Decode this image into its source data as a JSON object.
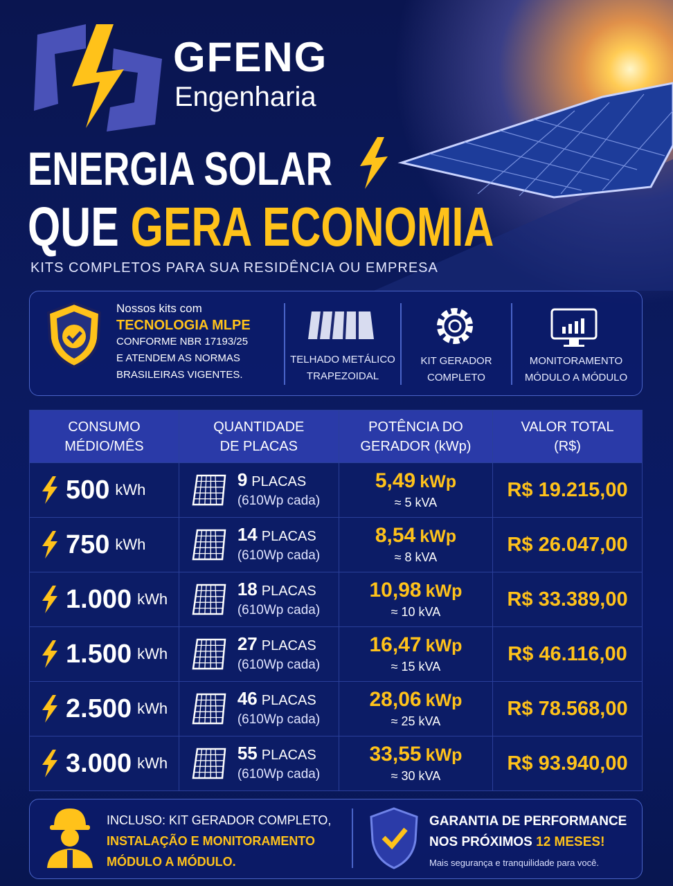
{
  "brand": {
    "name": "GFENG",
    "subtitle": "Engenharia"
  },
  "headline": {
    "line1": "ENERGIA SOLAR",
    "line2_white": "QUE",
    "line2_yellow": "GERA ECONOMIA",
    "tagline": "KITS COMPLETOS PARA SUA RESIDÊNCIA OU EMPRESA"
  },
  "features": {
    "mlpe": {
      "intro": "Nossos kits com",
      "highlight": "TECNOLOGIA MLPE",
      "lines": [
        "CONFORME NBR 17193/25",
        "E ATENDEM AS NORMAS",
        "BRASILEIRAS VIGENTES."
      ]
    },
    "items": [
      {
        "lines": [
          "TELHADO METÁLICO",
          "TRAPEZOIDAL"
        ]
      },
      {
        "lines": [
          "KIT GERADOR",
          "COMPLETO"
        ]
      },
      {
        "lines": [
          "MONITORAMENTO",
          "MÓDULO A MÓDULO"
        ]
      }
    ]
  },
  "table": {
    "headers": [
      [
        "CONSUMO",
        "MÉDIO/MÊS"
      ],
      [
        "QUANTIDADE",
        "DE PLACAS"
      ],
      [
        "POTÊNCIA DO",
        "GERADOR (kWp)"
      ],
      [
        "VALOR TOTAL",
        "(R$)"
      ]
    ],
    "rows": [
      {
        "consumption": "500",
        "consumption_unit": "kWh",
        "plates": "9",
        "plates_unit": "PLACAS",
        "plates_note": "(610Wp cada)",
        "power": "5,49",
        "power_unit": "kWp",
        "kva": "≈ 5 kVA",
        "price": "R$ 19.215,00"
      },
      {
        "consumption": "750",
        "consumption_unit": "kWh",
        "plates": "14",
        "plates_unit": "PLACAS",
        "plates_note": "(610Wp cada)",
        "power": "8,54",
        "power_unit": "kWp",
        "kva": "≈ 8 kVA",
        "price": "R$ 26.047,00"
      },
      {
        "consumption": "1.000",
        "consumption_unit": "kWh",
        "plates": "18",
        "plates_unit": "PLACAS",
        "plates_note": "(610Wp cada)",
        "power": "10,98",
        "power_unit": "kWp",
        "kva": "≈ 10 kVA",
        "price": "R$ 33.389,00"
      },
      {
        "consumption": "1.500",
        "consumption_unit": "kWh",
        "plates": "27",
        "plates_unit": "PLACAS",
        "plates_note": "(610Wp cada)",
        "power": "16,47",
        "power_unit": "kWp",
        "kva": "≈ 15 kVA",
        "price": "R$ 46.116,00"
      },
      {
        "consumption": "2.500",
        "consumption_unit": "kWh",
        "plates": "46",
        "plates_unit": "PLACAS",
        "plates_note": "(610Wp cada)",
        "power": "28,06",
        "power_unit": "kWp",
        "kva": "≈ 25 kVA",
        "price": "R$ 78.568,00"
      },
      {
        "consumption": "3.000",
        "consumption_unit": "kWh",
        "plates": "55",
        "plates_unit": "PLACAS",
        "plates_note": "(610Wp cada)",
        "power": "33,55",
        "power_unit": "kWp",
        "kva": "≈ 30 kVA",
        "price": "R$ 93.940,00"
      }
    ]
  },
  "footer": {
    "included": {
      "line1": "INCLUSO: KIT GERADOR COMPLETO,",
      "line2": "INSTALAÇÃO E MONITORAMENTO",
      "line3": "MÓDULO A MÓDULO."
    },
    "warranty": {
      "line1": "GARANTIA DE PERFORMANCE",
      "line2": "NOS PRÓXIMOS",
      "highlight": "12 MESES!",
      "note": "Mais segurança e tranquilidade para você."
    }
  }
}
